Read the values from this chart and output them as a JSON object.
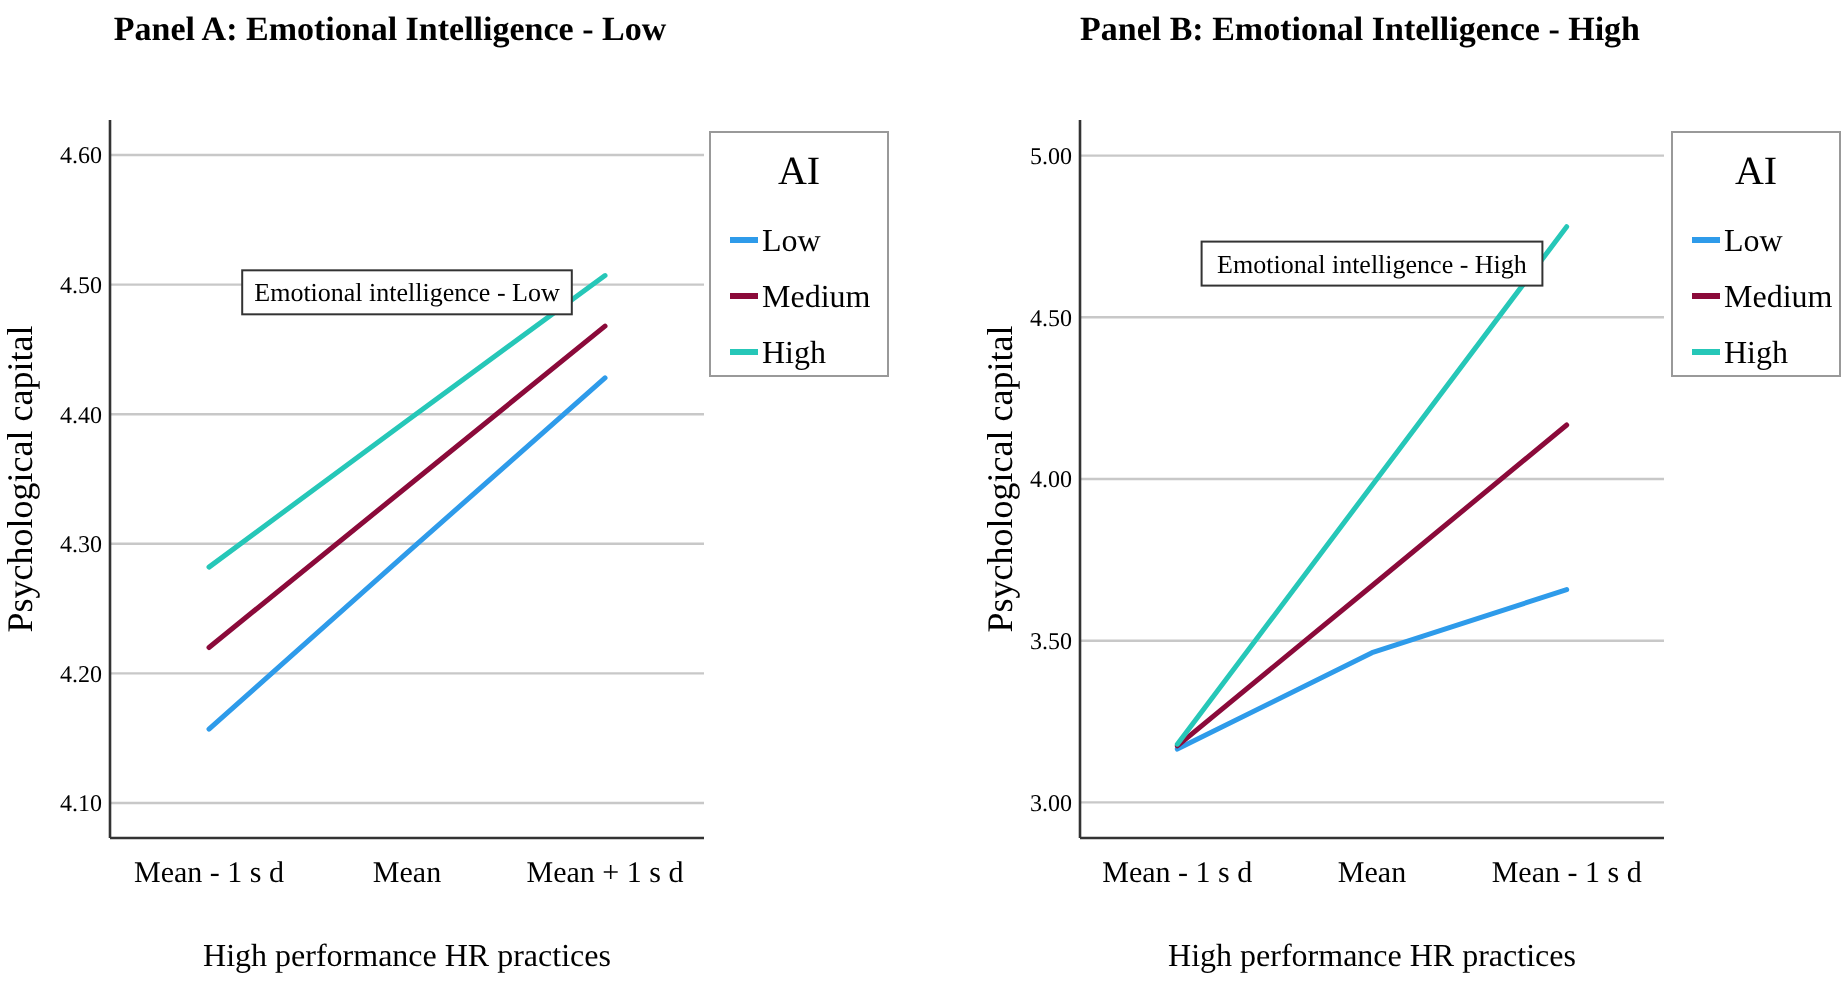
{
  "chart_data": [
    {
      "type": "line",
      "title": "Panel A: Emotional Intelligence - Low",
      "xlabel": "High performance HR practices",
      "ylabel": "Psychological capital",
      "legend_title": "AI",
      "annotations": [
        "Emotional intelligence - Low"
      ],
      "categories": [
        "Mean - 1 s d",
        "Mean",
        "Mean + 1 s d"
      ],
      "series": [
        {
          "name": "Low",
          "color": "#2e9bea",
          "values": [
            4.157,
            4.293,
            4.428
          ]
        },
        {
          "name": "Medium",
          "color": "#8b0a3a",
          "values": [
            4.22,
            4.344,
            4.468
          ]
        },
        {
          "name": "High",
          "color": "#26c7b8",
          "values": [
            4.282,
            4.395,
            4.507
          ]
        }
      ],
      "ylim": [
        4.073,
        4.627
      ],
      "yticks": [
        {
          "value": 4.1,
          "label": "4.10"
        },
        {
          "value": 4.2,
          "label": "4.20"
        },
        {
          "value": 4.3,
          "label": "4.30"
        },
        {
          "value": 4.4,
          "label": "4.40"
        },
        {
          "value": 4.5,
          "label": "4.50"
        },
        {
          "value": 4.6,
          "label": "4.60"
        }
      ],
      "grid": "y",
      "legend": "top right",
      "marker": "none",
      "line_style": "solid"
    },
    {
      "type": "line",
      "title": "Panel B: Emotional Intelligence - High",
      "xlabel": "High performance HR practices",
      "ylabel": "Psychological capital",
      "legend_title": "AI",
      "annotations": [
        "Emotional intelligence - High"
      ],
      "categories": [
        "Mean - 1 s d",
        "Mean",
        "Mean - 1 s d"
      ],
      "series": [
        {
          "name": "Low",
          "color": "#2e9bea",
          "values": [
            3.165,
            3.463,
            3.658
          ]
        },
        {
          "name": "Medium",
          "color": "#8b0a3a",
          "values": [
            3.175,
            3.67,
            4.167
          ]
        },
        {
          "name": "High",
          "color": "#26c7b8",
          "values": [
            3.18,
            3.98,
            4.78
          ]
        }
      ],
      "ylim": [
        2.89,
        5.11
      ],
      "yticks": [
        {
          "value": 3,
          "label": "3.00"
        },
        {
          "value": 3.5,
          "label": "3.50"
        },
        {
          "value": 4,
          "label": "4.00"
        },
        {
          "value": 4.5,
          "label": "4.50"
        },
        {
          "value": 5,
          "label": "5.00"
        }
      ],
      "grid": "y",
      "legend": "top right",
      "marker": "none",
      "line_style": "solid"
    }
  ]
}
